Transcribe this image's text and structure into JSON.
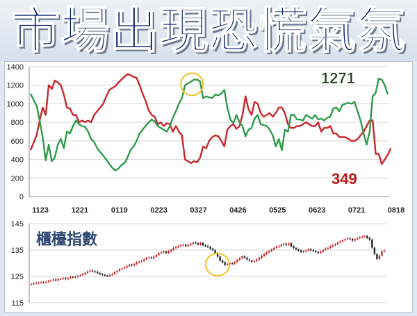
{
  "title": "市場出現恐慌氣氛",
  "chart_data": [
    {
      "type": "line",
      "ylim": [
        0,
        1400
      ],
      "y_ticks": [
        0,
        200,
        400,
        600,
        800,
        1000,
        1200,
        1400
      ],
      "x_tick_labels": [
        "1123",
        "1221",
        "0119",
        "0223",
        "0327",
        "0426",
        "0525",
        "0623",
        "0721",
        "0818"
      ],
      "grid": true,
      "colors": {
        "green": "#2e9a4a",
        "red": "#c8272b"
      },
      "annotations": {
        "green_last": "1271",
        "red_last": "349"
      },
      "green": [
        1110,
        1040,
        980,
        820,
        640,
        390,
        560,
        380,
        420,
        560,
        620,
        520,
        700,
        680,
        760,
        820,
        780,
        760,
        750,
        700,
        620,
        590,
        520,
        480,
        440,
        400,
        350,
        310,
        280,
        300,
        340,
        360,
        420,
        500,
        540,
        600,
        680,
        720,
        760,
        800,
        830,
        810,
        760,
        740,
        720,
        700,
        760,
        850,
        920,
        1000,
        1060,
        1200,
        1220,
        1240,
        1260,
        1260,
        1240,
        1060,
        1080,
        1070,
        1060,
        1100,
        1090,
        1110,
        1150,
        960,
        830,
        790,
        880,
        800,
        760,
        650,
        720,
        740,
        840,
        880,
        780,
        770,
        760,
        720,
        660,
        540,
        620,
        500,
        720,
        700,
        880,
        880,
        830,
        830,
        820,
        880,
        860,
        840,
        880,
        830,
        840,
        820,
        850,
        860,
        950,
        960,
        920,
        990,
        1000,
        1010,
        1000,
        1020,
        920,
        820,
        680,
        560,
        700,
        1080,
        1120,
        1271,
        1260,
        1200,
        1100
      ],
      "red": [
        500,
        580,
        660,
        820,
        960,
        880,
        1200,
        1160,
        1250,
        1230,
        1200,
        1100,
        960,
        950,
        880,
        880,
        800,
        820,
        800,
        820,
        800,
        880,
        920,
        960,
        1000,
        1080,
        1150,
        1170,
        1190,
        1230,
        1260,
        1290,
        1320,
        1310,
        1290,
        1280,
        1200,
        1110,
        1030,
        930,
        880,
        860,
        780,
        800,
        760,
        790,
        780,
        700,
        760,
        700,
        660,
        400,
        380,
        360,
        380,
        370,
        420,
        540,
        520,
        600,
        640,
        660,
        650,
        600,
        540,
        720,
        760,
        780,
        730,
        760,
        880,
        1080,
        940,
        880,
        1020,
        1000,
        900,
        860,
        880,
        900,
        860,
        900,
        960,
        960,
        900,
        780,
        740,
        740,
        760,
        760,
        780,
        800,
        780,
        760,
        760,
        800,
        700,
        740,
        740,
        760,
        680,
        680,
        640,
        640,
        640,
        620,
        600,
        600,
        620,
        660,
        700,
        760,
        820,
        820,
        460,
        460,
        349,
        400,
        450,
        520
      ]
    },
    {
      "type": "line",
      "title": "櫃檯指數",
      "ylim": [
        115,
        145
      ],
      "y_ticks": [
        115,
        125,
        135,
        145
      ],
      "grid": true,
      "colors": {
        "up": "#c8272b",
        "down": "#222222",
        "circle": "#f0c020"
      },
      "close": [
        122.1,
        122.3,
        122.5,
        122.6,
        122.8,
        122.7,
        122.9,
        123.3,
        123.5,
        123.8,
        123.5,
        124.0,
        124.1,
        124.3,
        124.0,
        124.4,
        124.8,
        124.6,
        124.9,
        125.2,
        125.5,
        125.9,
        126.4,
        126.9,
        127.2,
        126.9,
        126.7,
        126.3,
        125.9,
        125.6,
        125.3,
        125.1,
        125.5,
        125.9,
        126.6,
        127.1,
        127.8,
        128.1,
        128.4,
        128.9,
        129.4,
        129.2,
        129.7,
        130.3,
        130.6,
        130.9,
        131.5,
        132.0,
        132.2,
        131.9,
        132.5,
        133.1,
        133.8,
        134.1,
        134.4,
        133.9,
        134.5,
        135.1,
        135.7,
        136.1,
        136.5,
        136.8,
        137.0,
        136.5,
        136.9,
        137.4,
        137.8,
        137.6,
        137.1,
        137.7,
        136.8,
        136.5,
        136.2,
        135.5,
        134.9,
        133.9,
        132.5,
        131.0,
        130.3,
        129.4,
        129.6,
        130.0,
        129.8,
        130.4,
        131.2,
        131.9,
        132.6,
        132.1,
        131.4,
        131.0,
        130.6,
        130.8,
        131.4,
        132.0,
        132.8,
        133.5,
        134.1,
        134.6,
        135.2,
        135.8,
        136.2,
        136.5,
        137.0,
        137.4,
        137.0,
        137.5,
        136.4,
        135.8,
        135.2,
        134.8,
        134.2,
        134.5,
        134.8,
        135.3,
        134.9,
        134.6,
        134.2,
        133.9,
        134.4,
        135.0,
        135.5,
        135.8,
        136.4,
        136.8,
        137.2,
        137.9,
        138.3,
        138.7,
        139.1,
        139.4,
        139.2,
        138.6,
        139.1,
        139.5,
        139.8,
        140.1,
        140.3,
        139.6,
        138.9,
        135.9,
        133.4,
        131.6,
        132.9,
        134.5,
        134.8
      ]
    }
  ]
}
